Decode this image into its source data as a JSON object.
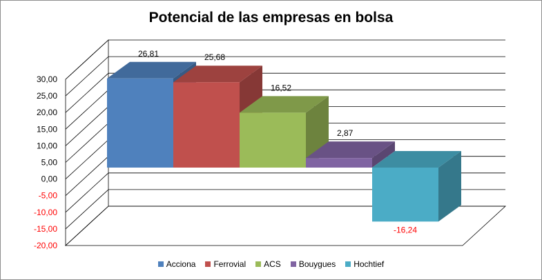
{
  "chart_data": {
    "type": "bar",
    "title": "Potencial de las empresas en bolsa",
    "categories": [
      "Acciona",
      "Ferrovial",
      "ACS",
      "Bouygues",
      "Hochtief"
    ],
    "values": [
      26.81,
      25.68,
      16.52,
      2.87,
      -16.24
    ],
    "value_labels": [
      "26,81",
      "25,68",
      "16,52",
      "2,87",
      "-16,24"
    ],
    "colors": [
      "#4f81bd",
      "#c0504d",
      "#9bbb59",
      "#8064a2",
      "#4bacc6"
    ],
    "ylim": [
      -20,
      30
    ],
    "y_ticks": [
      30,
      25,
      20,
      15,
      10,
      5,
      0,
      -5,
      -10,
      -15,
      -20
    ],
    "y_tick_labels": [
      "30,00",
      "25,00",
      "20,00",
      "15,00",
      "10,00",
      "5,00",
      "0,00",
      "-5,00",
      "-10,00",
      "-15,00",
      "-20,00"
    ],
    "negative_label_color": "#ff0000",
    "grid": true,
    "legend_position": "bottom",
    "style": "3d-column"
  }
}
